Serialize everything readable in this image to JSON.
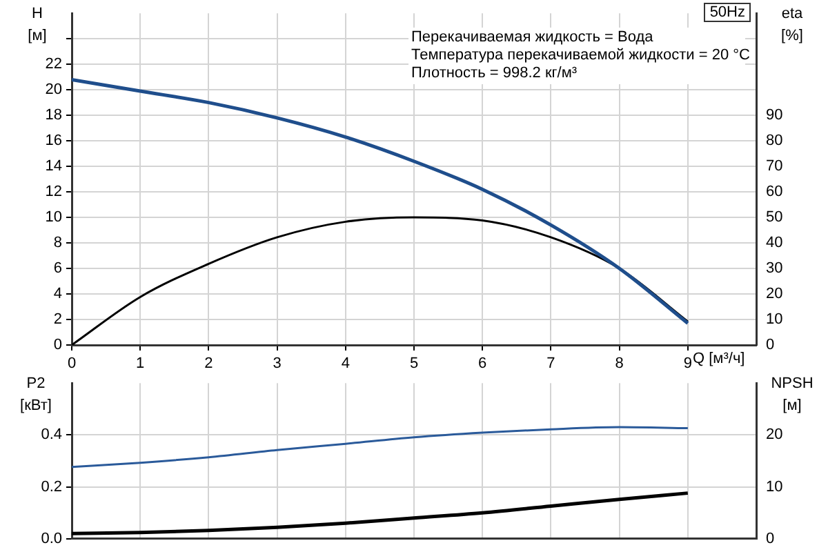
{
  "chart_data": [
    {
      "type": "line",
      "title": "50Hz",
      "xlabel": "Q [м³/ч]",
      "ylabel": "H [м]",
      "y2label": "eta [%]",
      "annotations": [
        "Перекачиваемая жидкость = Вода",
        "Температура перекачиваемой жидкости = 20 °C",
        "Плотность = 998.2 кг/м³"
      ],
      "x": [
        0,
        1,
        2,
        3,
        4,
        5,
        6,
        7,
        8,
        9
      ],
      "series": [
        {
          "color": "#1f4e8c",
          "values": [
            20.8,
            19.9,
            19.0,
            17.8,
            16.3,
            14.4,
            12.2,
            9.4,
            6.0,
            1.7
          ]
        },
        {
          "color": "#000000",
          "axis": "y2",
          "values": [
            0,
            18.8,
            31.8,
            42.2,
            48.3,
            50,
            48.8,
            42.2,
            30,
            9.2
          ]
        }
      ],
      "xlim": [
        0,
        10
      ],
      "xticks": [
        0,
        1,
        2,
        3,
        4,
        5,
        6,
        7,
        8,
        9
      ],
      "ylim": [
        0,
        26
      ],
      "yticks": [
        0,
        2,
        4,
        6,
        8,
        10,
        12,
        14,
        16,
        18,
        20,
        22,
        {
          "value": 24,
          "label": null
        }
      ],
      "y2lim": [
        0,
        130
      ],
      "y2ticks": [
        0,
        10,
        20,
        30,
        40,
        50,
        60,
        70,
        80,
        90
      ],
      "grid": true,
      "legend": false,
      "marker": "none"
    },
    {
      "type": "line",
      "ylabel": "P2 [кВт]",
      "y2label": "NPSH [м]",
      "x": [
        0,
        1,
        2,
        3,
        4,
        5,
        6,
        7,
        8,
        9
      ],
      "series": [
        {
          "color": "#2a5a9a",
          "values": [
            0.277,
            0.293,
            0.314,
            0.342,
            0.366,
            0.391,
            0.409,
            0.422,
            0.43,
            0.426
          ]
        },
        {
          "color": "#000000",
          "axis": "y2",
          "values": [
            1.0,
            1.2,
            1.6,
            2.2,
            3.0,
            4.0,
            5.0,
            6.3,
            7.6,
            8.8
          ]
        }
      ],
      "xlim": [
        0,
        10
      ],
      "xticks": [
        0,
        1,
        2,
        3,
        4,
        5,
        6,
        7,
        8,
        9
      ],
      "ylim": [
        0,
        0.6
      ],
      "yticks": [
        {
          "value": 0,
          "label": "0.0"
        },
        0.2,
        0.4
      ],
      "y2lim": [
        0,
        30
      ],
      "y2ticks": [
        0,
        10,
        20
      ],
      "tick_labels": "y",
      "grid": true,
      "legend": false,
      "marker": "none"
    }
  ]
}
